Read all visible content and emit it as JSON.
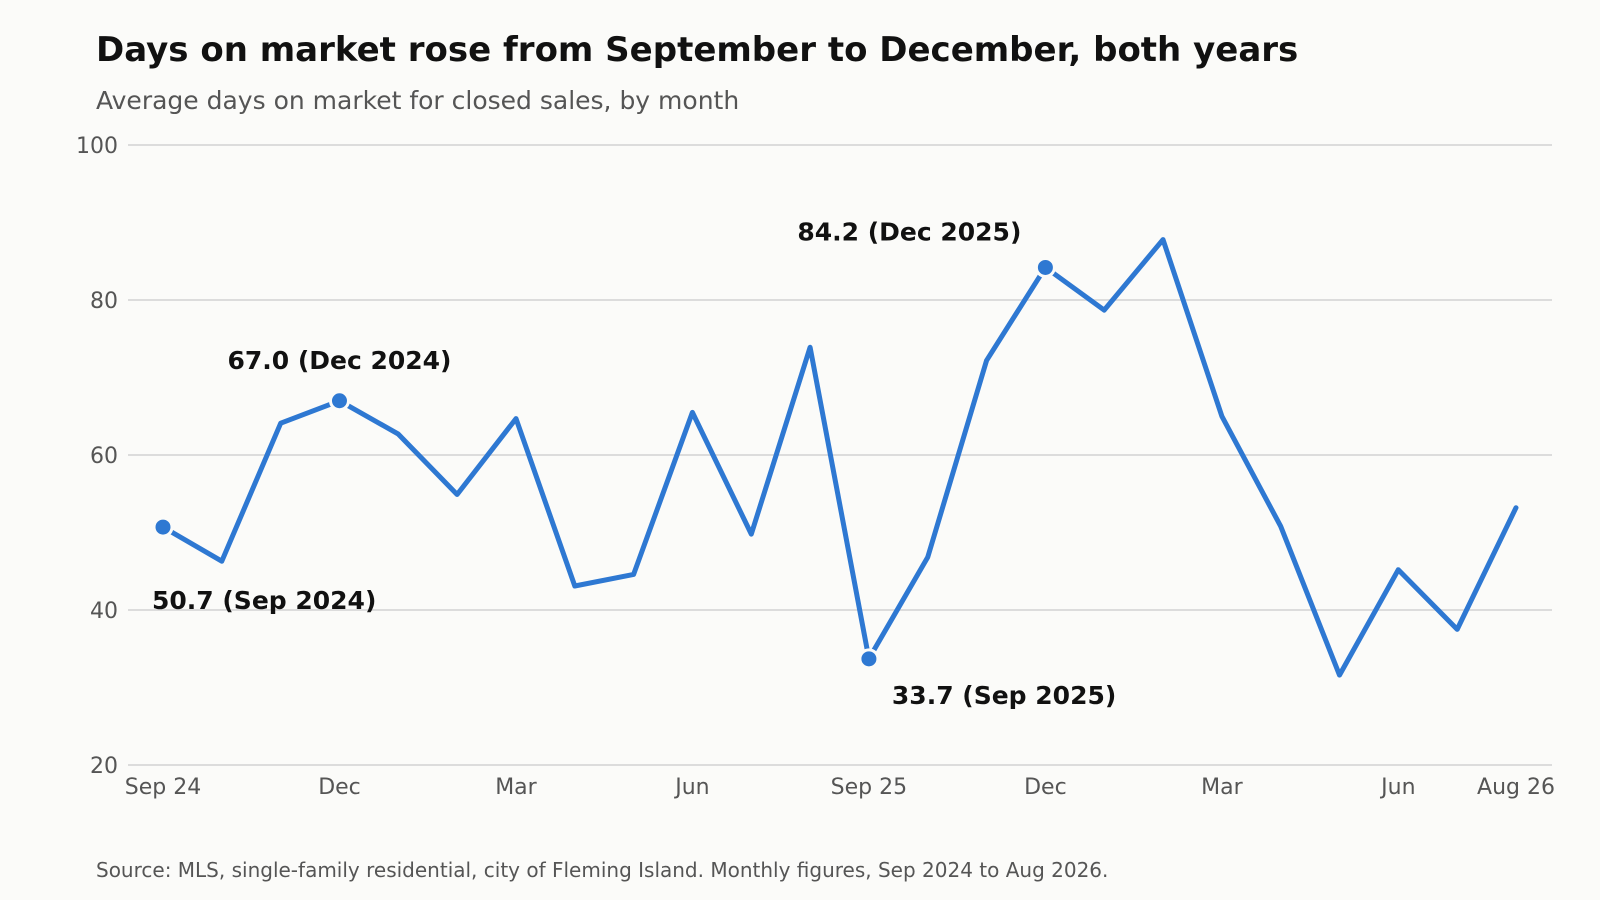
{
  "chart_data": {
    "type": "line",
    "title": "Days on market rose from September to December, both years",
    "subtitle": "Average days on market for closed sales, by month",
    "source": "Source: MLS, single-family residential, city of Fleming Island. Monthly figures, Sep 2024 to Aug 2026.",
    "xlabel": "",
    "ylabel": "",
    "ylim": [
      20,
      100
    ],
    "yticks": [
      20,
      40,
      60,
      80,
      100
    ],
    "grid": "horizontal",
    "legend": "none",
    "x": [
      "2024-09",
      "2024-10",
      "2024-11",
      "2024-12",
      "2025-01",
      "2025-02",
      "2025-03",
      "2025-04",
      "2025-05",
      "2025-06",
      "2025-07",
      "2025-08",
      "2025-09",
      "2025-10",
      "2025-11",
      "2025-12",
      "2026-01",
      "2026-02",
      "2026-03",
      "2026-04",
      "2026-05",
      "2026-06",
      "2026-07",
      "2026-08"
    ],
    "xticks": [
      {
        "x": "2024-09",
        "label": "Sep 24"
      },
      {
        "x": "2024-12",
        "label": "Dec"
      },
      {
        "x": "2025-03",
        "label": "Mar"
      },
      {
        "x": "2025-06",
        "label": "Jun"
      },
      {
        "x": "2025-09",
        "label": "Sep 25"
      },
      {
        "x": "2025-12",
        "label": "Dec"
      },
      {
        "x": "2026-03",
        "label": "Mar"
      },
      {
        "x": "2026-06",
        "label": "Jun"
      },
      {
        "x": "2026-08",
        "label": "Aug 26"
      }
    ],
    "series": [
      {
        "color": "#2e78d2",
        "values": [
          50.7,
          46.3,
          64.1,
          67.0,
          62.7,
          54.9,
          64.7,
          43.1,
          44.6,
          65.5,
          49.8,
          73.9,
          33.7,
          46.8,
          72.2,
          84.2,
          78.7,
          87.8,
          65.0,
          50.8,
          31.6,
          45.2,
          37.5,
          53.2
        ]
      }
    ],
    "annotations": [
      {
        "x": "2024-09",
        "value": 50.7,
        "label": "50.7 (Sep 2024)",
        "position": "below"
      },
      {
        "x": "2024-12",
        "value": 67.0,
        "label": "67.0 (Dec 2024)",
        "position": "above"
      },
      {
        "x": "2025-09",
        "value": 33.7,
        "label": "33.7 (Sep 2025)",
        "position": "below-right"
      },
      {
        "x": "2025-12",
        "value": 84.2,
        "label": "84.2 (Dec 2025)",
        "position": "above-left"
      }
    ]
  }
}
